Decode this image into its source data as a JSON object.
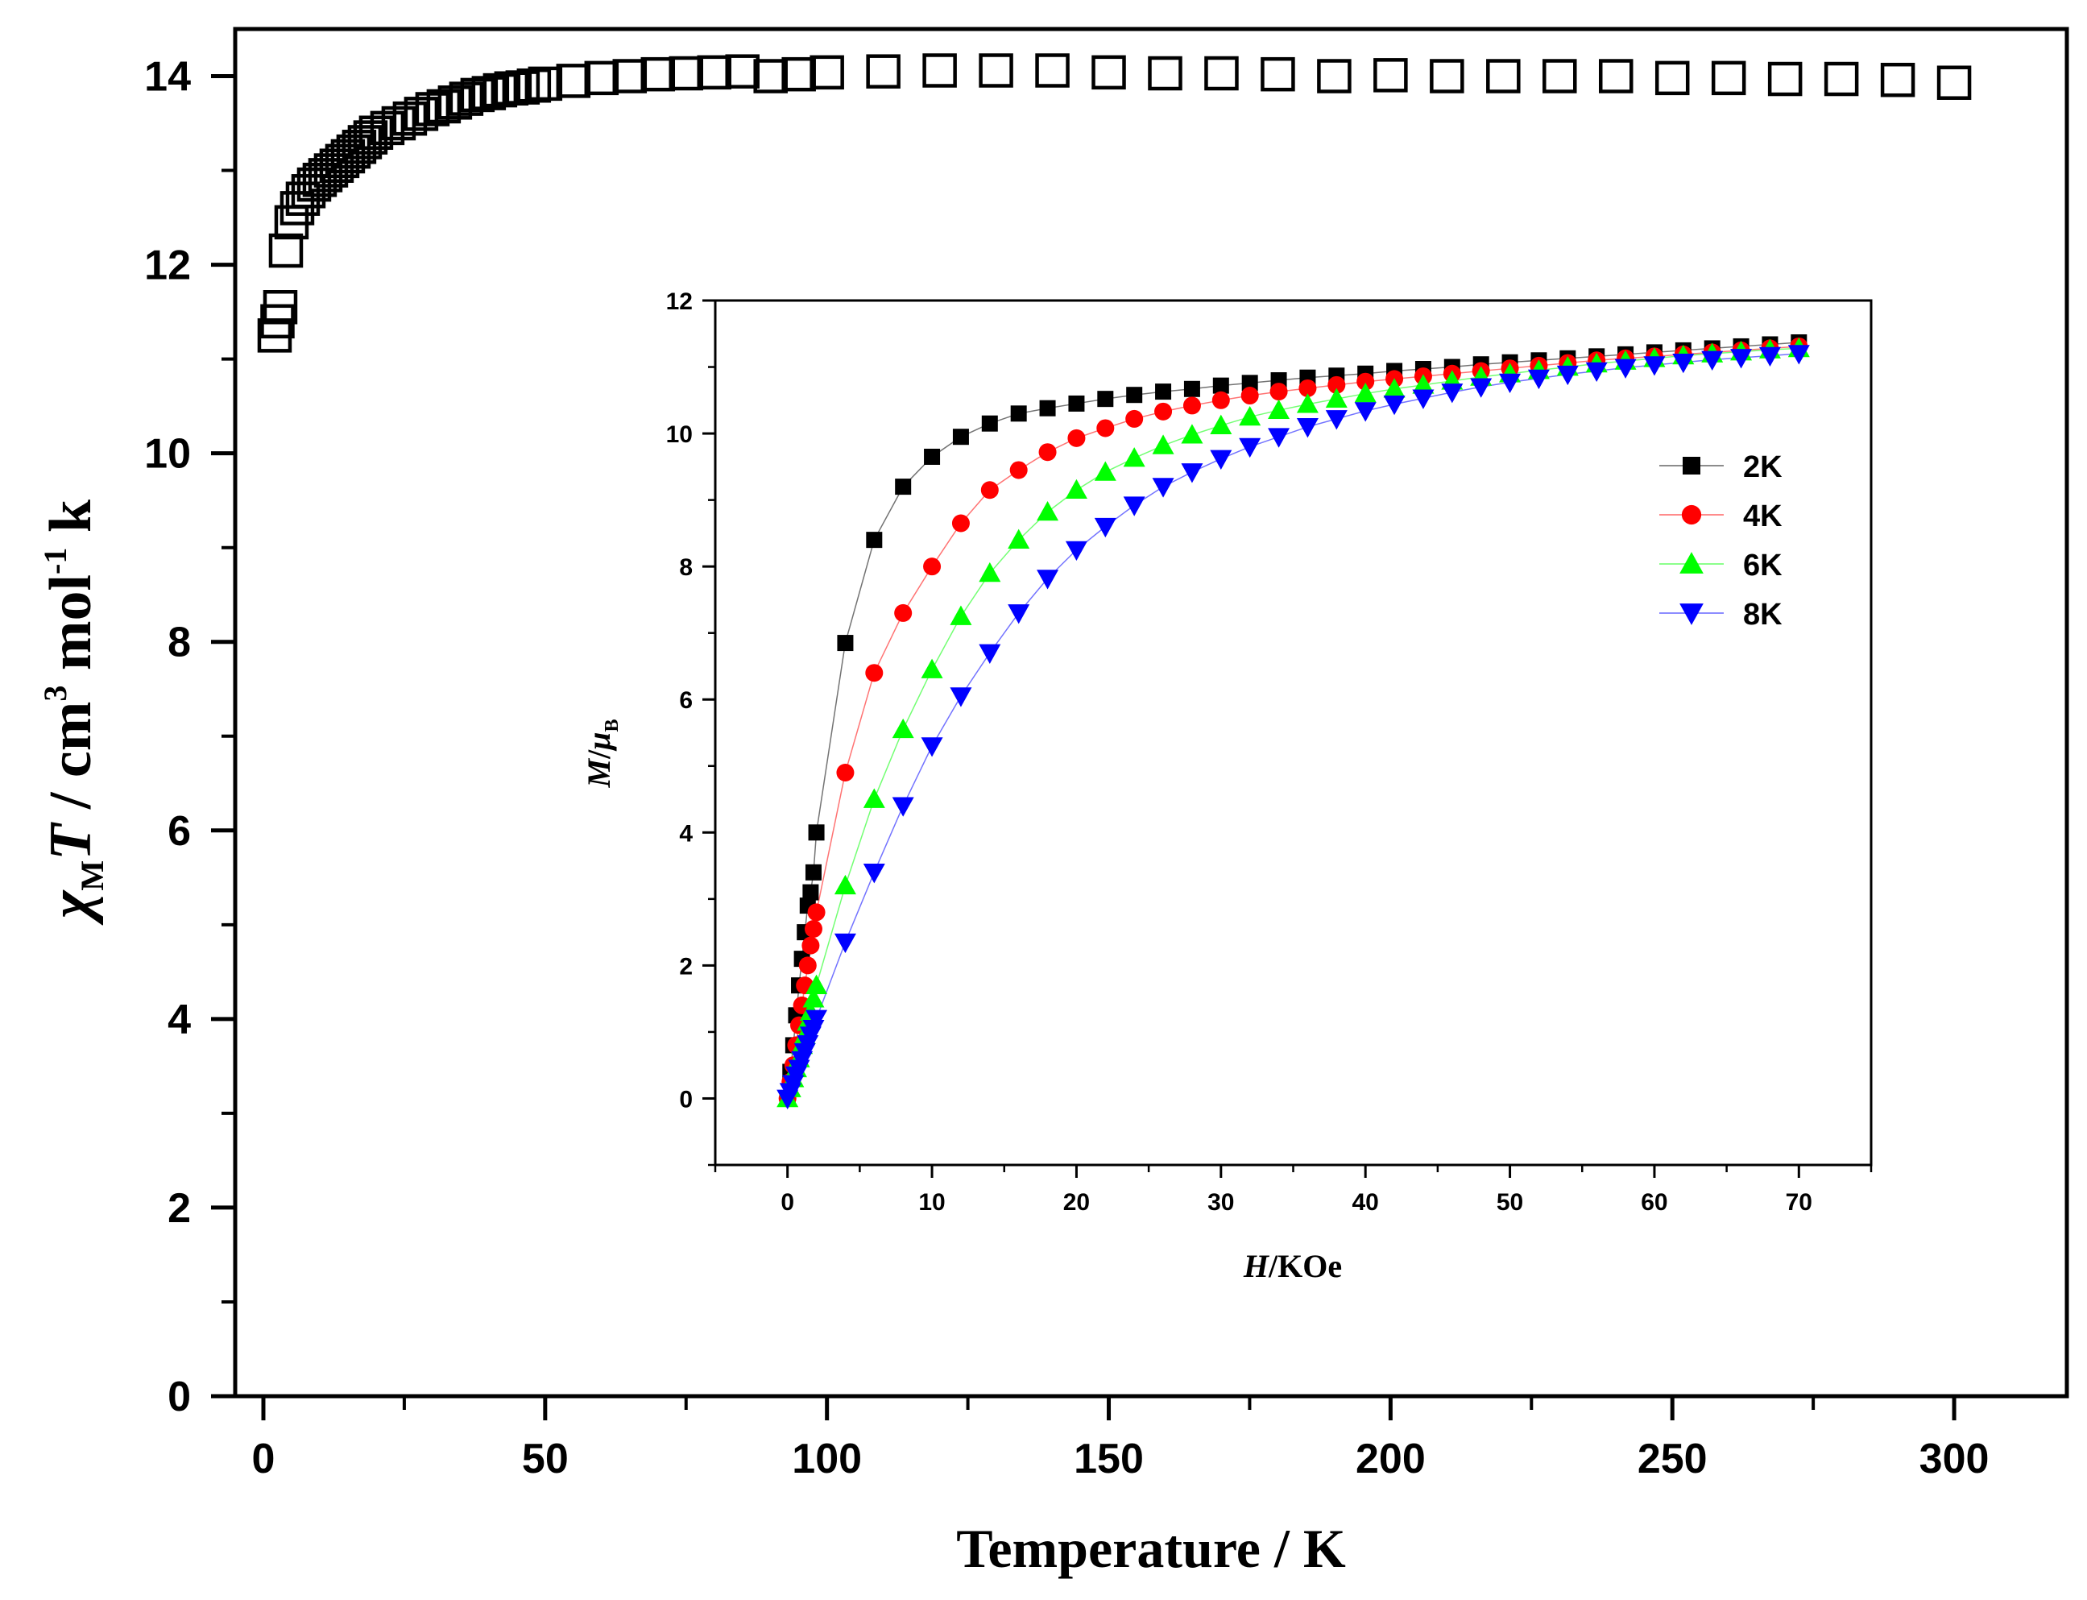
{
  "chart_data": [
    {
      "id": "main",
      "type": "scatter",
      "title": "",
      "xlabel": "Temperature / K",
      "ylabel": {
        "chi": "χ",
        "chi_sub": "M",
        "T": "T",
        "unit_a": " / cm",
        "sup3": "3",
        "unit_b": " mol",
        "supm1": "-1",
        "unit_c": " k"
      },
      "xlim": [
        -5,
        320
      ],
      "ylim": [
        0,
        14.5
      ],
      "xticks": [
        "0",
        "50",
        "100",
        "150",
        "200",
        "250",
        "300"
      ],
      "yticks": [
        "0",
        "2",
        "4",
        "6",
        "8",
        "10",
        "12",
        "14"
      ],
      "marker": "open-square",
      "color": "#000000",
      "series": [
        {
          "name": "χMT",
          "x": [
            2,
            2.5,
            3,
            4,
            5,
            6,
            7,
            8,
            9,
            10,
            11,
            12,
            13,
            14,
            15,
            16,
            17,
            18,
            19,
            20,
            22,
            24,
            26,
            28,
            30,
            32,
            34,
            36,
            38,
            40,
            42,
            44,
            46,
            48,
            50,
            55,
            60,
            65,
            70,
            75,
            80,
            85,
            90,
            95,
            100,
            110,
            120,
            130,
            140,
            150,
            160,
            170,
            180,
            190,
            200,
            210,
            220,
            230,
            240,
            250,
            260,
            270,
            280,
            290,
            300
          ],
          "y": [
            11.25,
            11.4,
            11.55,
            12.15,
            12.45,
            12.6,
            12.7,
            12.78,
            12.85,
            12.9,
            12.95,
            13.0,
            13.05,
            13.1,
            13.15,
            13.2,
            13.25,
            13.3,
            13.35,
            13.4,
            13.45,
            13.5,
            13.55,
            13.6,
            13.65,
            13.68,
            13.72,
            13.76,
            13.8,
            13.82,
            13.85,
            13.87,
            13.88,
            13.9,
            13.92,
            13.95,
            13.98,
            14.0,
            14.02,
            14.03,
            14.04,
            14.05,
            14.0,
            14.02,
            14.04,
            14.05,
            14.06,
            14.06,
            14.06,
            14.04,
            14.03,
            14.03,
            14.02,
            14.0,
            14.01,
            14.0,
            14.0,
            14.0,
            14.0,
            13.98,
            13.98,
            13.97,
            13.97,
            13.96,
            13.93
          ]
        }
      ]
    },
    {
      "id": "inset",
      "type": "line",
      "title": "",
      "xlabel": {
        "italic": "H",
        "rest": "/KOe"
      },
      "ylabel": {
        "italic_m": "M",
        "slash": "/",
        "mu": "μ",
        "sub": "B"
      },
      "xlim": [
        -5,
        75
      ],
      "ylim": [
        -1,
        12
      ],
      "xticks": [
        "0",
        "10",
        "20",
        "30",
        "40",
        "50",
        "60",
        "70"
      ],
      "yticks": [
        "0",
        "2",
        "4",
        "6",
        "8",
        "10",
        "12"
      ],
      "legend_position": "right",
      "series": [
        {
          "name": "2K",
          "color": "#000000",
          "marker": "square",
          "x": [
            0,
            0.2,
            0.4,
            0.6,
            0.8,
            1,
            1.2,
            1.4,
            1.6,
            1.8,
            2,
            4,
            6,
            8,
            10,
            12,
            14,
            16,
            18,
            20,
            22,
            24,
            26,
            28,
            30,
            32,
            34,
            36,
            38,
            40,
            42,
            44,
            46,
            48,
            50,
            52,
            54,
            56,
            58,
            60,
            62,
            64,
            66,
            68,
            70
          ],
          "y": [
            0,
            0.4,
            0.8,
            1.25,
            1.7,
            2.1,
            2.5,
            2.9,
            3.1,
            3.4,
            4.0,
            6.85,
            8.4,
            9.2,
            9.65,
            9.95,
            10.15,
            10.3,
            10.38,
            10.45,
            10.52,
            10.58,
            10.63,
            10.67,
            10.72,
            10.76,
            10.8,
            10.84,
            10.87,
            10.9,
            10.94,
            10.97,
            11.0,
            11.04,
            11.07,
            11.1,
            11.13,
            11.16,
            11.19,
            11.22,
            11.25,
            11.28,
            11.31,
            11.34,
            11.37
          ]
        },
        {
          "name": "4K",
          "color": "#ff0000",
          "marker": "circle",
          "x": [
            0,
            0.2,
            0.4,
            0.6,
            0.8,
            1,
            1.2,
            1.4,
            1.6,
            1.8,
            2,
            4,
            6,
            8,
            10,
            12,
            14,
            16,
            18,
            20,
            22,
            24,
            26,
            28,
            30,
            32,
            34,
            36,
            38,
            40,
            42,
            44,
            46,
            48,
            50,
            52,
            54,
            56,
            58,
            60,
            62,
            64,
            66,
            68,
            70
          ],
          "y": [
            0,
            0.25,
            0.5,
            0.8,
            1.1,
            1.4,
            1.7,
            2.0,
            2.3,
            2.55,
            2.8,
            4.9,
            6.4,
            7.3,
            8.0,
            8.65,
            9.15,
            9.45,
            9.72,
            9.93,
            10.08,
            10.22,
            10.33,
            10.42,
            10.5,
            10.57,
            10.63,
            10.68,
            10.73,
            10.78,
            10.82,
            10.86,
            10.9,
            10.94,
            10.98,
            11.02,
            11.06,
            11.1,
            11.13,
            11.16,
            11.19,
            11.22,
            11.25,
            11.28,
            11.31
          ]
        },
        {
          "name": "6K",
          "color": "#00ff00",
          "marker": "triangle-up",
          "x": [
            0,
            0.2,
            0.4,
            0.6,
            0.8,
            1,
            1.2,
            1.4,
            1.6,
            1.8,
            2,
            4,
            6,
            8,
            10,
            12,
            14,
            16,
            18,
            20,
            22,
            24,
            26,
            28,
            30,
            32,
            34,
            36,
            38,
            40,
            42,
            44,
            46,
            48,
            50,
            52,
            54,
            56,
            58,
            60,
            62,
            64,
            66,
            68,
            70
          ],
          "y": [
            0,
            0.15,
            0.3,
            0.45,
            0.6,
            0.8,
            0.95,
            1.15,
            1.3,
            1.5,
            1.7,
            3.2,
            4.5,
            5.55,
            6.45,
            7.25,
            7.9,
            8.4,
            8.82,
            9.15,
            9.42,
            9.63,
            9.82,
            9.98,
            10.12,
            10.25,
            10.35,
            10.44,
            10.52,
            10.6,
            10.67,
            10.73,
            10.79,
            10.85,
            10.9,
            10.95,
            11.0,
            11.05,
            11.09,
            11.13,
            11.17,
            11.2,
            11.23,
            11.26,
            11.28
          ]
        },
        {
          "name": "8K",
          "color": "#0000ff",
          "marker": "triangle-down",
          "x": [
            0,
            0.2,
            0.4,
            0.6,
            0.8,
            1,
            1.2,
            1.4,
            1.6,
            1.8,
            2,
            4,
            6,
            8,
            10,
            12,
            14,
            16,
            18,
            20,
            22,
            24,
            26,
            28,
            30,
            32,
            34,
            36,
            38,
            40,
            42,
            44,
            46,
            48,
            50,
            52,
            54,
            56,
            58,
            60,
            62,
            64,
            66,
            68,
            70
          ],
          "y": [
            0,
            0.1,
            0.22,
            0.35,
            0.45,
            0.58,
            0.7,
            0.82,
            0.95,
            1.05,
            1.2,
            2.35,
            3.4,
            4.4,
            5.3,
            6.05,
            6.7,
            7.3,
            7.82,
            8.25,
            8.6,
            8.92,
            9.2,
            9.42,
            9.62,
            9.8,
            9.95,
            10.1,
            10.22,
            10.34,
            10.44,
            10.53,
            10.62,
            10.7,
            10.77,
            10.83,
            10.89,
            10.94,
            10.99,
            11.03,
            11.07,
            11.11,
            11.14,
            11.17,
            11.2
          ]
        }
      ]
    }
  ]
}
